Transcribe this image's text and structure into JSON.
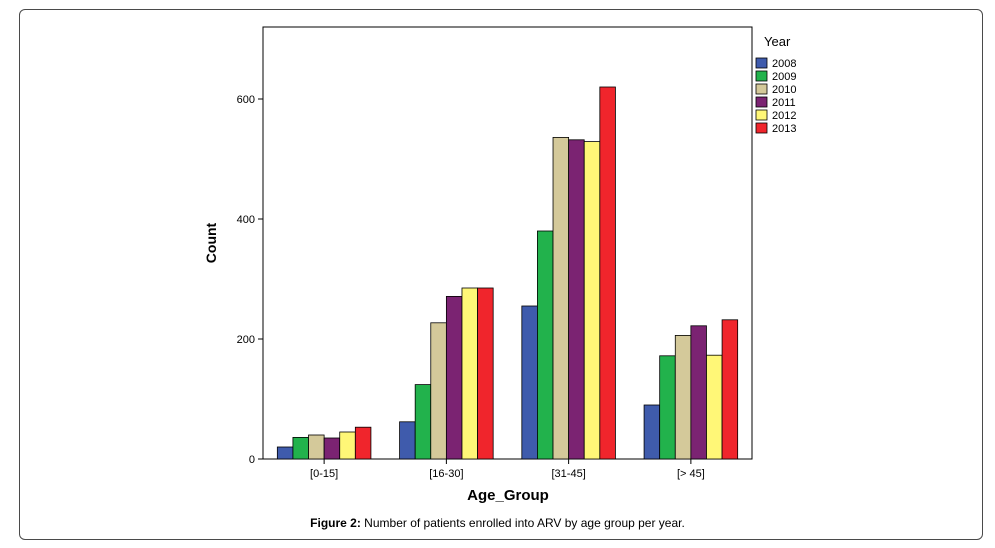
{
  "figure": {
    "caption_label": "Figure 2:",
    "caption_text": " Number of patients enrolled into ARV by age group per year."
  },
  "chart_data": {
    "type": "bar",
    "title": "",
    "xlabel": "Age_Group",
    "ylabel": "Count",
    "ylim": [
      0,
      720
    ],
    "yticks": [
      0,
      200,
      400,
      600
    ],
    "grid": false,
    "legend_title": "Year",
    "legend_position": "right",
    "categories": [
      "[0-15]",
      "[16-30]",
      "[31-45]",
      "[> 45]"
    ],
    "series": [
      {
        "name": "2008",
        "color": "#3f5bac",
        "values": [
          20,
          62,
          255,
          90
        ]
      },
      {
        "name": "2009",
        "color": "#22b24c",
        "values": [
          36,
          124,
          380,
          172
        ]
      },
      {
        "name": "2010",
        "color": "#d4c99a",
        "values": [
          40,
          227,
          536,
          206
        ]
      },
      {
        "name": "2011",
        "color": "#7b2372",
        "values": [
          35,
          271,
          532,
          222
        ]
      },
      {
        "name": "2012",
        "color": "#fff777",
        "values": [
          45,
          285,
          529,
          173
        ]
      },
      {
        "name": "2013",
        "color": "#f0252c",
        "values": [
          53,
          285,
          620,
          232
        ]
      }
    ]
  }
}
